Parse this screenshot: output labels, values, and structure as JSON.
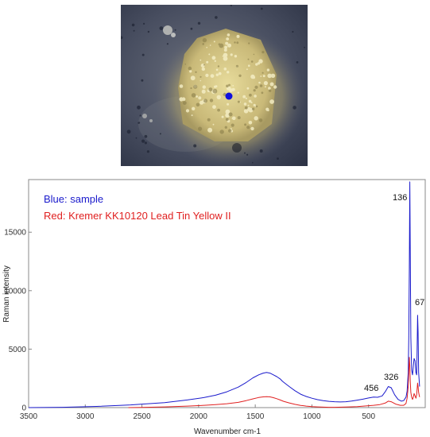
{
  "micrograph": {
    "marker_color": "#1010dd"
  },
  "chart_data": {
    "type": "line",
    "title": "",
    "xlabel": "Wavenumber cm-1",
    "ylabel": "Raman intensity",
    "xlim": [
      3500,
      0
    ],
    "ylim": [
      0,
      19500
    ],
    "x_ticks": [
      3500,
      3000,
      2500,
      2000,
      1500,
      1000,
      500
    ],
    "y_ticks": [
      0,
      5000,
      10000,
      15000
    ],
    "grid": false,
    "legend": [
      {
        "label": "Blue: sample",
        "color": "#1a1acc"
      },
      {
        "label": "Red: Kremer KK10120 Lead Tin Yellow II",
        "color": "#e02020"
      }
    ],
    "annotations": [
      {
        "text": "136",
        "x": 136,
        "y": 19300
      },
      {
        "text": "67",
        "x": 67,
        "y": 8600
      },
      {
        "text": "326",
        "x": 326,
        "y": 2300
      },
      {
        "text": "456",
        "x": 456,
        "y": 1700
      }
    ],
    "series": [
      {
        "color": "#1a1acc",
        "x": [
          3500,
          3200,
          2900,
          2600,
          2300,
          2100,
          1950,
          1850,
          1750,
          1650,
          1580,
          1520,
          1470,
          1430,
          1400,
          1370,
          1340,
          1310,
          1280,
          1260,
          1240,
          1200,
          1150,
          1100,
          1050,
          1000,
          950,
          900,
          850,
          800,
          750,
          700,
          650,
          600,
          550,
          500,
          456,
          420,
          380,
          350,
          326,
          300,
          270,
          240,
          210,
          190,
          170,
          160,
          150,
          145,
          140,
          136,
          132,
          127,
          120,
          112,
          105,
          98,
          90,
          82,
          76,
          72,
          67,
          63,
          58,
          50
        ],
        "y": [
          0,
          30,
          100,
          230,
          430,
          650,
          860,
          1060,
          1350,
          1750,
          2150,
          2550,
          2800,
          2950,
          3000,
          2950,
          2800,
          2650,
          2450,
          2250,
          2100,
          1800,
          1450,
          1150,
          950,
          800,
          680,
          600,
          540,
          500,
          480,
          500,
          560,
          640,
          720,
          820,
          900,
          880,
          1000,
          1400,
          1800,
          1700,
          1100,
          700,
          550,
          600,
          900,
          1400,
          3000,
          6000,
          12000,
          19300,
          13000,
          6000,
          3200,
          2800,
          3500,
          4200,
          4000,
          3000,
          2800,
          4500,
          7900,
          6500,
          3000,
          1800
        ]
      },
      {
        "color": "#e02020",
        "x": [
          2620,
          2500,
          2300,
          2100,
          1950,
          1850,
          1750,
          1650,
          1580,
          1520,
          1470,
          1430,
          1400,
          1370,
          1340,
          1310,
          1280,
          1250,
          1200,
          1150,
          1100,
          1050,
          1000,
          950,
          900,
          850,
          800,
          700,
          600,
          500,
          456,
          400,
          350,
          326,
          300,
          260,
          220,
          190,
          170,
          160,
          150,
          145,
          140,
          136,
          132,
          127,
          120,
          112,
          105,
          98,
          90,
          82,
          76,
          72,
          67,
          63,
          58,
          50
        ],
        "y": [
          0,
          20,
          60,
          130,
          200,
          260,
          330,
          450,
          600,
          750,
          860,
          920,
          940,
          920,
          850,
          760,
          650,
          540,
          400,
          280,
          190,
          130,
          90,
          60,
          40,
          30,
          30,
          50,
          90,
          160,
          200,
          260,
          400,
          550,
          500,
          300,
          200,
          200,
          350,
          800,
          1800,
          3000,
          4300,
          3600,
          2200,
          1300,
          900,
          700,
          900,
          1200,
          1000,
          800,
          1100,
          1500,
          2100,
          1800,
          1300,
          900
        ]
      }
    ]
  }
}
